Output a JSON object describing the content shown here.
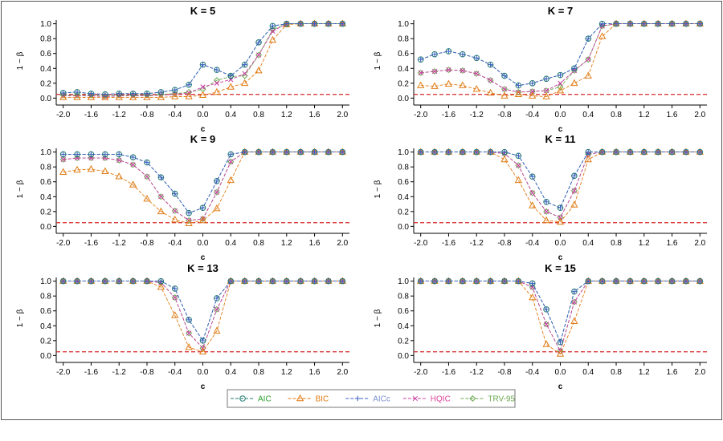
{
  "figure": {
    "ylabel": "1 − β",
    "xlabel": "c",
    "reference_line": {
      "y": 0.05,
      "color": "#d62728",
      "style": "dashed"
    },
    "series_styles": [
      {
        "name": "AIC",
        "color": "#1f7a70",
        "marker": "circle",
        "text_color": "#2ca02c"
      },
      {
        "name": "BIC",
        "color": "#e07b14",
        "marker": "triangle",
        "text_color": "#e07b14"
      },
      {
        "name": "AICc",
        "color": "#3b5fc0",
        "marker": "plus",
        "text_color": "#7b8fd0"
      },
      {
        "name": "HQIC",
        "color": "#c83ca0",
        "marker": "x",
        "text_color": "#e0449a"
      },
      {
        "name": "TRV-95",
        "color": "#6aa84f",
        "marker": "diamond",
        "text_color": "#6aa84f"
      }
    ]
  },
  "chart_data": [
    {
      "type": "line",
      "title": "K = 5",
      "xlabel": "c",
      "ylabel": "1 − β",
      "x": [
        -2.0,
        -1.8,
        -1.6,
        -1.4,
        -1.2,
        -1.0,
        -0.8,
        -0.6,
        -0.4,
        -0.2,
        0.0,
        0.2,
        0.4,
        0.6,
        0.8,
        1.0,
        1.2,
        1.4,
        1.6,
        1.8,
        2.0
      ],
      "xticks": [
        "-2.0",
        "-1.6",
        "-1.2",
        "-0.8",
        "-0.4",
        "0.0",
        "0.4",
        "0.8",
        "1.2",
        "1.6",
        "2.0"
      ],
      "yticks": [
        "0.0",
        "0.2",
        "0.4",
        "0.6",
        "0.8",
        "1.0"
      ],
      "xlim": [
        -2.1,
        2.1
      ],
      "ylim": [
        -0.05,
        1.05
      ],
      "series": [
        {
          "name": "AIC",
          "values": [
            0.07,
            0.08,
            0.06,
            0.05,
            0.06,
            0.06,
            0.06,
            0.08,
            0.11,
            0.18,
            0.45,
            0.38,
            0.3,
            0.45,
            0.75,
            0.97,
            1.0,
            1.0,
            1.0,
            1.0,
            1.0
          ]
        },
        {
          "name": "BIC",
          "values": [
            0.01,
            0.01,
            0.01,
            0.01,
            0.01,
            0.01,
            0.01,
            0.01,
            0.02,
            0.02,
            0.04,
            0.08,
            0.15,
            0.2,
            0.37,
            0.78,
            0.99,
            1.0,
            1.0,
            1.0,
            1.0
          ]
        },
        {
          "name": "AICc",
          "values": [
            0.07,
            0.08,
            0.06,
            0.05,
            0.06,
            0.06,
            0.06,
            0.08,
            0.11,
            0.18,
            0.45,
            0.38,
            0.3,
            0.45,
            0.75,
            0.97,
            1.0,
            1.0,
            1.0,
            1.0,
            1.0
          ]
        },
        {
          "name": "HQIC",
          "values": [
            0.03,
            0.03,
            0.03,
            0.02,
            0.03,
            0.03,
            0.03,
            0.04,
            0.05,
            0.07,
            0.15,
            0.2,
            0.25,
            0.33,
            0.58,
            0.9,
            1.0,
            1.0,
            1.0,
            1.0,
            1.0
          ]
        },
        {
          "name": "TRV-95",
          "values": [
            0.04,
            0.04,
            0.04,
            0.03,
            0.04,
            0.04,
            0.04,
            0.05,
            0.06,
            0.08,
            0.12,
            0.24,
            0.29,
            0.3,
            0.58,
            0.92,
            1.0,
            1.0,
            1.0,
            1.0,
            1.0
          ]
        }
      ]
    },
    {
      "type": "line",
      "title": "K = 7",
      "xlabel": "c",
      "ylabel": "1 − β",
      "x": [
        -2.0,
        -1.8,
        -1.6,
        -1.4,
        -1.2,
        -1.0,
        -0.8,
        -0.6,
        -0.4,
        -0.2,
        0.0,
        0.2,
        0.4,
        0.6,
        0.8,
        1.0,
        1.2,
        1.4,
        1.6,
        1.8,
        2.0
      ],
      "xticks": [
        "-2.0",
        "-1.6",
        "-1.2",
        "-0.8",
        "-0.4",
        "0.0",
        "0.4",
        "0.8",
        "1.2",
        "1.6",
        "2.0"
      ],
      "yticks": [
        "0.0",
        "0.2",
        "0.4",
        "0.6",
        "0.8",
        "1.0"
      ],
      "xlim": [
        -2.1,
        2.1
      ],
      "ylim": [
        -0.05,
        1.05
      ],
      "series": [
        {
          "name": "AIC",
          "values": [
            0.52,
            0.59,
            0.63,
            0.59,
            0.54,
            0.45,
            0.3,
            0.17,
            0.2,
            0.26,
            0.31,
            0.4,
            0.8,
            1.0,
            1.0,
            1.0,
            1.0,
            1.0,
            1.0,
            1.0,
            1.0
          ]
        },
        {
          "name": "BIC",
          "values": [
            0.17,
            0.16,
            0.19,
            0.17,
            0.12,
            0.07,
            0.03,
            0.05,
            0.03,
            0.02,
            0.1,
            0.2,
            0.3,
            0.83,
            1.0,
            1.0,
            1.0,
            1.0,
            1.0,
            1.0,
            1.0
          ]
        },
        {
          "name": "AICc",
          "values": [
            0.52,
            0.59,
            0.63,
            0.59,
            0.54,
            0.45,
            0.3,
            0.17,
            0.2,
            0.26,
            0.31,
            0.4,
            0.8,
            1.0,
            1.0,
            1.0,
            1.0,
            1.0,
            1.0,
            1.0,
            1.0
          ]
        },
        {
          "name": "HQIC",
          "values": [
            0.34,
            0.36,
            0.38,
            0.37,
            0.33,
            0.24,
            0.12,
            0.08,
            0.09,
            0.1,
            0.2,
            0.37,
            0.52,
            0.97,
            1.0,
            1.0,
            1.0,
            1.0,
            1.0,
            1.0,
            1.0
          ]
        },
        {
          "name": "TRV-95",
          "values": [
            0.34,
            0.36,
            0.38,
            0.37,
            0.33,
            0.24,
            0.12,
            0.08,
            0.09,
            0.1,
            0.15,
            0.37,
            0.52,
            0.97,
            1.0,
            1.0,
            1.0,
            1.0,
            1.0,
            1.0,
            1.0
          ]
        }
      ]
    },
    {
      "type": "line",
      "title": "K = 9",
      "xlabel": "c",
      "ylabel": "1 − β",
      "x": [
        -2.0,
        -1.8,
        -1.6,
        -1.4,
        -1.2,
        -1.0,
        -0.8,
        -0.6,
        -0.4,
        -0.2,
        0.0,
        0.2,
        0.4,
        0.6,
        0.8,
        1.0,
        1.2,
        1.4,
        1.6,
        1.8,
        2.0
      ],
      "xticks": [
        "-2.0",
        "-1.6",
        "-1.2",
        "-0.8",
        "-0.4",
        "0.0",
        "0.4",
        "0.8",
        "1.2",
        "1.6",
        "2.0"
      ],
      "yticks": [
        "0.0",
        "0.2",
        "0.4",
        "0.6",
        "0.8",
        "1.0"
      ],
      "xlim": [
        -2.1,
        2.1
      ],
      "ylim": [
        -0.05,
        1.05
      ],
      "series": [
        {
          "name": "AIC",
          "values": [
            0.97,
            0.97,
            0.97,
            0.97,
            0.97,
            0.93,
            0.86,
            0.66,
            0.44,
            0.18,
            0.25,
            0.61,
            0.97,
            1.0,
            1.0,
            1.0,
            1.0,
            1.0,
            1.0,
            1.0,
            1.0
          ]
        },
        {
          "name": "BIC",
          "values": [
            0.73,
            0.76,
            0.77,
            0.74,
            0.67,
            0.56,
            0.37,
            0.2,
            0.09,
            0.04,
            0.08,
            0.24,
            0.62,
            1.0,
            1.0,
            1.0,
            1.0,
            1.0,
            1.0,
            1.0,
            1.0
          ]
        },
        {
          "name": "AICc",
          "values": [
            0.97,
            0.97,
            0.97,
            0.97,
            0.97,
            0.93,
            0.86,
            0.66,
            0.44,
            0.18,
            0.25,
            0.61,
            0.97,
            1.0,
            1.0,
            1.0,
            1.0,
            1.0,
            1.0,
            1.0,
            1.0
          ]
        },
        {
          "name": "HQIC",
          "values": [
            0.9,
            0.92,
            0.92,
            0.92,
            0.89,
            0.83,
            0.67,
            0.4,
            0.21,
            0.08,
            0.1,
            0.46,
            0.87,
            1.0,
            1.0,
            1.0,
            1.0,
            1.0,
            1.0,
            1.0,
            1.0
          ]
        },
        {
          "name": "TRV-95",
          "values": [
            0.9,
            0.92,
            0.92,
            0.92,
            0.89,
            0.83,
            0.67,
            0.4,
            0.21,
            0.08,
            0.1,
            0.46,
            0.87,
            1.0,
            1.0,
            1.0,
            1.0,
            1.0,
            1.0,
            1.0,
            1.0
          ]
        }
      ]
    },
    {
      "type": "line",
      "title": "K = 11",
      "xlabel": "c",
      "ylabel": "1 − β",
      "x": [
        -2.0,
        -1.8,
        -1.6,
        -1.4,
        -1.2,
        -1.0,
        -0.8,
        -0.6,
        -0.4,
        -0.2,
        0.0,
        0.2,
        0.4,
        0.6,
        0.8,
        1.0,
        1.2,
        1.4,
        1.6,
        1.8,
        2.0
      ],
      "xticks": [
        "-2.0",
        "-1.6",
        "-1.2",
        "-0.8",
        "-0.4",
        "0.0",
        "0.4",
        "0.8",
        "1.2",
        "1.6",
        "2.0"
      ],
      "yticks": [
        "0.0",
        "0.2",
        "0.4",
        "0.6",
        "0.8",
        "1.0"
      ],
      "xlim": [
        -2.1,
        2.1
      ],
      "ylim": [
        -0.05,
        1.05
      ],
      "series": [
        {
          "name": "AIC",
          "values": [
            1.0,
            1.0,
            1.0,
            1.0,
            1.0,
            1.0,
            1.0,
            0.95,
            0.67,
            0.33,
            0.25,
            0.68,
            1.0,
            1.0,
            1.0,
            1.0,
            1.0,
            1.0,
            1.0,
            1.0,
            1.0
          ]
        },
        {
          "name": "BIC",
          "values": [
            1.0,
            1.0,
            1.0,
            1.0,
            1.0,
            1.0,
            0.9,
            0.62,
            0.28,
            0.08,
            0.06,
            0.29,
            0.9,
            1.0,
            1.0,
            1.0,
            1.0,
            1.0,
            1.0,
            1.0,
            1.0
          ]
        },
        {
          "name": "AICc",
          "values": [
            1.0,
            1.0,
            1.0,
            1.0,
            1.0,
            1.0,
            1.0,
            0.95,
            0.67,
            0.33,
            0.25,
            0.68,
            1.0,
            1.0,
            1.0,
            1.0,
            1.0,
            1.0,
            1.0,
            1.0,
            1.0
          ]
        },
        {
          "name": "HQIC",
          "values": [
            1.0,
            1.0,
            1.0,
            1.0,
            1.0,
            1.0,
            0.98,
            0.82,
            0.45,
            0.2,
            0.12,
            0.48,
            0.97,
            1.0,
            1.0,
            1.0,
            1.0,
            1.0,
            1.0,
            1.0,
            1.0
          ]
        },
        {
          "name": "TRV-95",
          "values": [
            1.0,
            1.0,
            1.0,
            1.0,
            1.0,
            1.0,
            0.98,
            0.82,
            0.45,
            0.2,
            0.12,
            0.48,
            0.97,
            1.0,
            1.0,
            1.0,
            1.0,
            1.0,
            1.0,
            1.0,
            1.0
          ]
        }
      ]
    },
    {
      "type": "line",
      "title": "K = 13",
      "xlabel": "c",
      "ylabel": "1 − β",
      "x": [
        -2.0,
        -1.8,
        -1.6,
        -1.4,
        -1.2,
        -1.0,
        -0.8,
        -0.6,
        -0.4,
        -0.2,
        0.0,
        0.2,
        0.4,
        0.6,
        0.8,
        1.0,
        1.2,
        1.4,
        1.6,
        1.8,
        2.0
      ],
      "xticks": [
        "-2.0",
        "-1.6",
        "-1.2",
        "-0.8",
        "-0.4",
        "0.0",
        "0.4",
        "0.8",
        "1.2",
        "1.6",
        "2.0"
      ],
      "yticks": [
        "0.0",
        "0.2",
        "0.4",
        "0.6",
        "0.8",
        "1.0"
      ],
      "xlim": [
        -2.1,
        2.1
      ],
      "ylim": [
        -0.05,
        1.05
      ],
      "series": [
        {
          "name": "AIC",
          "values": [
            1.0,
            1.0,
            1.0,
            1.0,
            1.0,
            1.0,
            1.0,
            1.0,
            0.9,
            0.48,
            0.2,
            0.77,
            1.0,
            1.0,
            1.0,
            1.0,
            1.0,
            1.0,
            1.0,
            1.0,
            1.0
          ]
        },
        {
          "name": "BIC",
          "values": [
            1.0,
            1.0,
            1.0,
            1.0,
            1.0,
            1.0,
            1.0,
            0.92,
            0.54,
            0.11,
            0.05,
            0.33,
            1.0,
            1.0,
            1.0,
            1.0,
            1.0,
            1.0,
            1.0,
            1.0,
            1.0
          ]
        },
        {
          "name": "AICc",
          "values": [
            1.0,
            1.0,
            1.0,
            1.0,
            1.0,
            1.0,
            1.0,
            1.0,
            0.9,
            0.48,
            0.2,
            0.77,
            1.0,
            1.0,
            1.0,
            1.0,
            1.0,
            1.0,
            1.0,
            1.0,
            1.0
          ]
        },
        {
          "name": "HQIC",
          "values": [
            1.0,
            1.0,
            1.0,
            1.0,
            1.0,
            1.0,
            1.0,
            0.98,
            0.78,
            0.3,
            0.1,
            0.62,
            1.0,
            1.0,
            1.0,
            1.0,
            1.0,
            1.0,
            1.0,
            1.0,
            1.0
          ]
        },
        {
          "name": "TRV-95",
          "values": [
            1.0,
            1.0,
            1.0,
            1.0,
            1.0,
            1.0,
            1.0,
            0.98,
            0.78,
            0.3,
            0.1,
            0.62,
            1.0,
            1.0,
            1.0,
            1.0,
            1.0,
            1.0,
            1.0,
            1.0,
            1.0
          ]
        }
      ]
    },
    {
      "type": "line",
      "title": "K = 15",
      "xlabel": "c",
      "ylabel": "1 − β",
      "x": [
        -2.0,
        -1.8,
        -1.6,
        -1.4,
        -1.2,
        -1.0,
        -0.8,
        -0.6,
        -0.4,
        -0.2,
        0.0,
        0.2,
        0.4,
        0.6,
        0.8,
        1.0,
        1.2,
        1.4,
        1.6,
        1.8,
        2.0
      ],
      "xticks": [
        "-2.0",
        "-1.6",
        "-1.2",
        "-0.8",
        "-0.4",
        "0.0",
        "0.4",
        "0.8",
        "1.2",
        "1.6",
        "2.0"
      ],
      "yticks": [
        "0.0",
        "0.2",
        "0.4",
        "0.6",
        "0.8",
        "1.0"
      ],
      "xlim": [
        -2.1,
        2.1
      ],
      "ylim": [
        -0.05,
        1.05
      ],
      "series": [
        {
          "name": "AIC",
          "values": [
            1.0,
            1.0,
            1.0,
            1.0,
            1.0,
            1.0,
            1.0,
            1.0,
            0.97,
            0.62,
            0.18,
            0.86,
            1.0,
            1.0,
            1.0,
            1.0,
            1.0,
            1.0,
            1.0,
            1.0,
            1.0
          ]
        },
        {
          "name": "BIC",
          "values": [
            1.0,
            1.0,
            1.0,
            1.0,
            1.0,
            1.0,
            1.0,
            1.0,
            0.78,
            0.15,
            0.02,
            0.46,
            1.0,
            1.0,
            1.0,
            1.0,
            1.0,
            1.0,
            1.0,
            1.0,
            1.0
          ]
        },
        {
          "name": "AICc",
          "values": [
            1.0,
            1.0,
            1.0,
            1.0,
            1.0,
            1.0,
            1.0,
            1.0,
            0.97,
            0.62,
            0.18,
            0.86,
            1.0,
            1.0,
            1.0,
            1.0,
            1.0,
            1.0,
            1.0,
            1.0,
            1.0
          ]
        },
        {
          "name": "HQIC",
          "values": [
            1.0,
            1.0,
            1.0,
            1.0,
            1.0,
            1.0,
            1.0,
            1.0,
            0.92,
            0.42,
            0.06,
            0.72,
            1.0,
            1.0,
            1.0,
            1.0,
            1.0,
            1.0,
            1.0,
            1.0,
            1.0
          ]
        },
        {
          "name": "TRV-95",
          "values": [
            1.0,
            1.0,
            1.0,
            1.0,
            1.0,
            1.0,
            1.0,
            1.0,
            0.92,
            0.42,
            0.06,
            0.72,
            1.0,
            1.0,
            1.0,
            1.0,
            1.0,
            1.0,
            1.0,
            1.0,
            1.0
          ]
        }
      ]
    }
  ]
}
